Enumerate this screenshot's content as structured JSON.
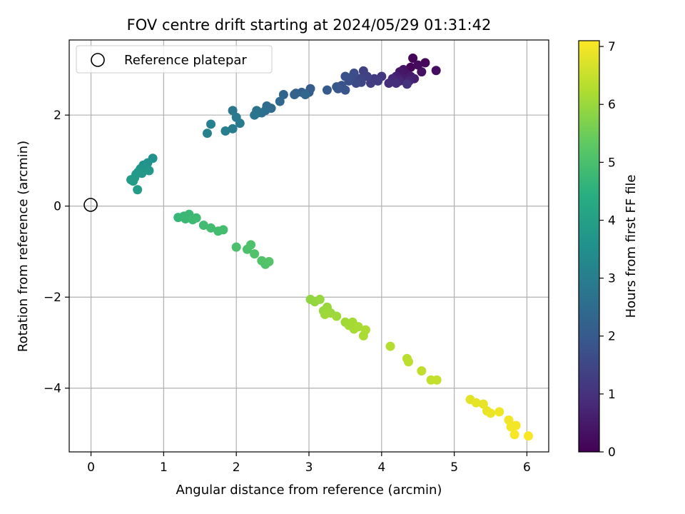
{
  "chart_data": {
    "type": "scatter",
    "title": "FOV centre drift starting at 2024/05/29 01:31:42",
    "xlabel": "Angular distance from reference (arcmin)",
    "ylabel": "Rotation from reference (arcmin)",
    "xlim": [
      -0.3,
      6.3
    ],
    "ylim": [
      -5.4,
      3.65
    ],
    "xticks": [
      0,
      1,
      2,
      3,
      4,
      5,
      6
    ],
    "xtick_labels": [
      "0",
      "1",
      "2",
      "3",
      "4",
      "5",
      "6"
    ],
    "yticks": [
      -4,
      -2,
      0,
      2
    ],
    "ytick_labels": [
      "−4",
      "−2",
      "0",
      "2"
    ],
    "grid": true,
    "legend": {
      "position": "top-left",
      "label": "Reference platepar"
    },
    "reference_point": {
      "x": 0,
      "y": 0
    },
    "colorbar": {
      "label": "Hours from first FF file",
      "colormap": "viridis",
      "range": [
        0,
        7.1
      ],
      "ticks": [
        0,
        1,
        2,
        3,
        4,
        5,
        6,
        7
      ],
      "tick_labels": [
        "0",
        "1",
        "2",
        "3",
        "4",
        "5",
        "6",
        "7"
      ]
    },
    "series": [
      {
        "points": [
          {
            "x": 4.4,
            "y": 3.05,
            "h": 0.05
          },
          {
            "x": 4.43,
            "y": 3.25,
            "h": 0.1
          },
          {
            "x": 4.6,
            "y": 3.15,
            "h": 0.15
          },
          {
            "x": 4.5,
            "y": 3.1,
            "h": 0.2
          },
          {
            "x": 4.75,
            "y": 2.98,
            "h": 0.25
          },
          {
            "x": 4.55,
            "y": 2.95,
            "h": 0.3
          },
          {
            "x": 4.3,
            "y": 3.0,
            "h": 0.35
          },
          {
            "x": 4.35,
            "y": 2.9,
            "h": 0.4
          },
          {
            "x": 4.25,
            "y": 2.95,
            "h": 0.45
          },
          {
            "x": 4.4,
            "y": 2.85,
            "h": 0.5
          },
          {
            "x": 4.3,
            "y": 2.8,
            "h": 0.55
          },
          {
            "x": 4.45,
            "y": 2.8,
            "h": 0.6
          },
          {
            "x": 4.2,
            "y": 2.85,
            "h": 0.65
          },
          {
            "x": 4.38,
            "y": 2.75,
            "h": 0.7
          },
          {
            "x": 4.25,
            "y": 2.75,
            "h": 0.75
          },
          {
            "x": 4.15,
            "y": 2.8,
            "h": 0.8
          },
          {
            "x": 4.1,
            "y": 2.7,
            "h": 0.9
          },
          {
            "x": 4.2,
            "y": 2.7,
            "h": 0.95
          },
          {
            "x": 4.35,
            "y": 2.68,
            "h": 1.0
          },
          {
            "x": 4.0,
            "y": 2.85,
            "h": 1.1
          },
          {
            "x": 3.9,
            "y": 2.8,
            "h": 1.2
          },
          {
            "x": 3.95,
            "y": 2.75,
            "h": 1.25
          },
          {
            "x": 3.85,
            "y": 2.7,
            "h": 1.3
          },
          {
            "x": 3.75,
            "y": 2.97,
            "h": 1.35
          },
          {
            "x": 3.8,
            "y": 2.85,
            "h": 1.4
          },
          {
            "x": 3.7,
            "y": 2.8,
            "h": 1.45
          },
          {
            "x": 3.72,
            "y": 2.72,
            "h": 1.5
          },
          {
            "x": 3.65,
            "y": 2.7,
            "h": 1.55
          },
          {
            "x": 3.6,
            "y": 2.85,
            "h": 1.6
          },
          {
            "x": 3.62,
            "y": 2.92,
            "h": 1.65
          },
          {
            "x": 3.55,
            "y": 2.75,
            "h": 1.7
          },
          {
            "x": 3.5,
            "y": 2.85,
            "h": 1.75
          },
          {
            "x": 3.45,
            "y": 2.65,
            "h": 1.8
          },
          {
            "x": 3.5,
            "y": 2.55,
            "h": 1.85
          },
          {
            "x": 3.4,
            "y": 2.58,
            "h": 1.9
          },
          {
            "x": 3.38,
            "y": 2.62,
            "h": 1.95
          },
          {
            "x": 3.25,
            "y": 2.55,
            "h": 2.0
          },
          {
            "x": 3.02,
            "y": 2.58,
            "h": 2.05
          },
          {
            "x": 3.0,
            "y": 2.5,
            "h": 2.1
          },
          {
            "x": 2.9,
            "y": 2.5,
            "h": 2.15
          },
          {
            "x": 2.82,
            "y": 2.48,
            "h": 2.2
          },
          {
            "x": 2.8,
            "y": 2.45,
            "h": 2.25
          },
          {
            "x": 2.65,
            "y": 2.45,
            "h": 2.3
          },
          {
            "x": 2.95,
            "y": 2.45,
            "h": 2.35
          },
          {
            "x": 2.6,
            "y": 2.3,
            "h": 2.4
          },
          {
            "x": 2.48,
            "y": 2.15,
            "h": 2.45
          },
          {
            "x": 2.42,
            "y": 2.2,
            "h": 2.5
          },
          {
            "x": 2.4,
            "y": 2.1,
            "h": 2.55
          },
          {
            "x": 2.35,
            "y": 2.05,
            "h": 2.6
          },
          {
            "x": 2.3,
            "y": 2.05,
            "h": 2.65
          },
          {
            "x": 2.28,
            "y": 2.1,
            "h": 2.7
          },
          {
            "x": 2.25,
            "y": 2.0,
            "h": 2.75
          },
          {
            "x": 1.95,
            "y": 2.1,
            "h": 2.8
          },
          {
            "x": 2.0,
            "y": 1.95,
            "h": 2.85
          },
          {
            "x": 2.05,
            "y": 1.82,
            "h": 2.9
          },
          {
            "x": 1.95,
            "y": 1.7,
            "h": 2.95
          },
          {
            "x": 1.85,
            "y": 1.65,
            "h": 3.0
          },
          {
            "x": 1.65,
            "y": 1.8,
            "h": 3.05
          },
          {
            "x": 1.6,
            "y": 1.6,
            "h": 3.1
          },
          {
            "x": 0.85,
            "y": 1.05,
            "h": 3.55
          },
          {
            "x": 0.78,
            "y": 0.95,
            "h": 3.6
          },
          {
            "x": 0.72,
            "y": 0.9,
            "h": 3.62
          },
          {
            "x": 0.68,
            "y": 0.82,
            "h": 3.65
          },
          {
            "x": 0.75,
            "y": 0.85,
            "h": 3.68
          },
          {
            "x": 0.65,
            "y": 0.75,
            "h": 3.7
          },
          {
            "x": 0.8,
            "y": 0.78,
            "h": 3.72
          },
          {
            "x": 0.7,
            "y": 0.72,
            "h": 3.75
          },
          {
            "x": 0.62,
            "y": 0.7,
            "h": 3.78
          },
          {
            "x": 0.6,
            "y": 0.62,
            "h": 3.8
          },
          {
            "x": 0.55,
            "y": 0.58,
            "h": 3.83
          },
          {
            "x": 0.58,
            "y": 0.55,
            "h": 3.85
          },
          {
            "x": 0.64,
            "y": 0.36,
            "h": 3.88
          },
          {
            "x": 1.2,
            "y": -0.25,
            "h": 4.7
          },
          {
            "x": 1.28,
            "y": -0.22,
            "h": 4.72
          },
          {
            "x": 1.35,
            "y": -0.18,
            "h": 4.75
          },
          {
            "x": 1.3,
            "y": -0.28,
            "h": 4.78
          },
          {
            "x": 1.4,
            "y": -0.3,
            "h": 4.8
          },
          {
            "x": 1.45,
            "y": -0.26,
            "h": 4.82
          },
          {
            "x": 1.55,
            "y": -0.42,
            "h": 4.85
          },
          {
            "x": 1.65,
            "y": -0.48,
            "h": 4.88
          },
          {
            "x": 1.75,
            "y": -0.55,
            "h": 4.9
          },
          {
            "x": 1.82,
            "y": -0.52,
            "h": 4.92
          },
          {
            "x": 2.0,
            "y": -0.9,
            "h": 5.0
          },
          {
            "x": 2.15,
            "y": -0.95,
            "h": 5.02
          },
          {
            "x": 2.2,
            "y": -0.85,
            "h": 5.05
          },
          {
            "x": 2.25,
            "y": -1.05,
            "h": 5.08
          },
          {
            "x": 2.35,
            "y": -1.2,
            "h": 5.1
          },
          {
            "x": 2.4,
            "y": -1.28,
            "h": 5.12
          },
          {
            "x": 2.45,
            "y": -1.22,
            "h": 5.15
          },
          {
            "x": 3.02,
            "y": -2.05,
            "h": 5.9
          },
          {
            "x": 3.08,
            "y": -2.1,
            "h": 5.92
          },
          {
            "x": 3.15,
            "y": -2.05,
            "h": 5.95
          },
          {
            "x": 3.2,
            "y": -2.3,
            "h": 5.97
          },
          {
            "x": 3.25,
            "y": -2.22,
            "h": 6.0
          },
          {
            "x": 3.3,
            "y": -2.35,
            "h": 6.02
          },
          {
            "x": 3.22,
            "y": -2.38,
            "h": 6.04
          },
          {
            "x": 3.38,
            "y": -2.42,
            "h": 6.06
          },
          {
            "x": 3.5,
            "y": -2.55,
            "h": 6.08
          },
          {
            "x": 3.55,
            "y": -2.62,
            "h": 6.1
          },
          {
            "x": 3.6,
            "y": -2.55,
            "h": 6.12
          },
          {
            "x": 3.62,
            "y": -2.7,
            "h": 6.14
          },
          {
            "x": 3.68,
            "y": -2.65,
            "h": 6.16
          },
          {
            "x": 3.75,
            "y": -2.85,
            "h": 6.18
          },
          {
            "x": 3.78,
            "y": -2.72,
            "h": 6.2
          },
          {
            "x": 4.12,
            "y": -3.08,
            "h": 6.3
          },
          {
            "x": 4.35,
            "y": -3.35,
            "h": 6.35
          },
          {
            "x": 4.37,
            "y": -3.42,
            "h": 6.38
          },
          {
            "x": 4.55,
            "y": -3.62,
            "h": 6.42
          },
          {
            "x": 4.68,
            "y": -3.82,
            "h": 6.46
          },
          {
            "x": 4.76,
            "y": -3.82,
            "h": 6.48
          },
          {
            "x": 5.22,
            "y": -4.25,
            "h": 6.8
          },
          {
            "x": 5.3,
            "y": -4.32,
            "h": 6.83
          },
          {
            "x": 5.4,
            "y": -4.35,
            "h": 6.86
          },
          {
            "x": 5.45,
            "y": -4.5,
            "h": 6.88
          },
          {
            "x": 5.5,
            "y": -4.55,
            "h": 6.9
          },
          {
            "x": 5.62,
            "y": -4.52,
            "h": 6.93
          },
          {
            "x": 5.75,
            "y": -4.7,
            "h": 6.96
          },
          {
            "x": 5.78,
            "y": -4.85,
            "h": 6.98
          },
          {
            "x": 5.85,
            "y": -4.82,
            "h": 7.0
          },
          {
            "x": 5.83,
            "y": -5.02,
            "h": 7.03
          },
          {
            "x": 6.02,
            "y": -5.05,
            "h": 7.06
          }
        ]
      }
    ]
  }
}
